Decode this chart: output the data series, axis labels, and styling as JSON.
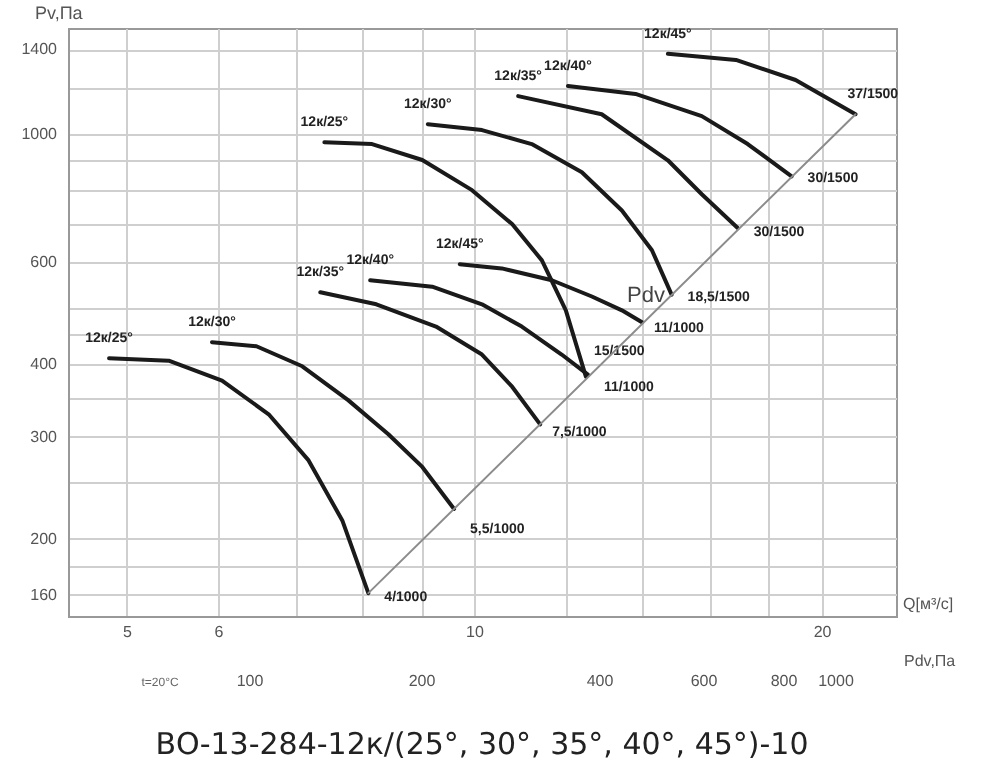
{
  "chart_data": [
    {
      "type": "line",
      "title": "ВО-13-284-12к/(25°, 30°, 35°, 40°, 45°)-10",
      "xlabel": "Q[м³/с]",
      "ylabel": "Pv,Па",
      "log": "xy",
      "grid": true,
      "xlim": [
        4.45,
        23.2
      ],
      "xticks": [
        5,
        6,
        {
          "value": 7,
          "label": null
        },
        {
          "value": 8,
          "label": null
        },
        {
          "value": 9,
          "label": null
        },
        10,
        {
          "value": 12,
          "label": null
        },
        {
          "value": 14,
          "label": null
        },
        {
          "value": 16,
          "label": null
        },
        {
          "value": 18,
          "label": null
        },
        20
      ],
      "ylim": [
        147,
        1525
      ],
      "yticks": [
        160,
        {
          "value": 180,
          "label": null
        },
        200,
        {
          "value": 250,
          "label": null
        },
        300,
        {
          "value": 350,
          "label": null
        },
        400,
        {
          "value": 450,
          "label": null
        },
        {
          "value": 500,
          "label": null
        },
        600,
        {
          "value": 700,
          "label": null
        },
        {
          "value": 800,
          "label": null
        },
        {
          "value": 900,
          "label": null
        },
        {
          "value": 1000,
          "label": "1000"
        },
        {
          "value": 1200,
          "label": null
        },
        {
          "value": 1400,
          "label": "1400"
        }
      ],
      "annotations": [
        "Pdv"
      ],
      "series": [
        {
          "type": "line",
          "name": "12к/25°",
          "color": "#1a1a1a",
          "x": [
            4.83,
            5.44,
            6.05,
            6.64,
            7.19,
            7.69,
            8.1
          ],
          "values": [
            410,
            406,
            375,
            328,
            273,
            215,
            161
          ],
          "value_labels": [
            null,
            null,
            null,
            null,
            null,
            null,
            "4/1000"
          ]
        },
        {
          "type": "line",
          "name": "12к/30°",
          "color": "#1a1a1a",
          "x": [
            5.93,
            6.48,
            7.1,
            7.78,
            8.43,
            9.02,
            9.61
          ],
          "values": [
            437,
            430,
            397,
            347,
            303,
            266,
            225
          ],
          "value_labels": [
            null,
            null,
            null,
            null,
            null,
            null,
            "5,5/1000"
          ]
        },
        {
          "type": "line",
          "name": "12к/35°",
          "color": "#1a1a1a",
          "x": [
            7.36,
            8.23,
            9.27,
            10.16,
            10.79,
            11.41
          ],
          "values": [
            533,
            508,
            465,
            416,
            366,
            315
          ],
          "value_labels": [
            null,
            null,
            null,
            null,
            null,
            "7,5/1000"
          ]
        },
        {
          "type": "line",
          "name": "12к/40°",
          "color": "#1a1a1a",
          "x": [
            8.13,
            9.2,
            10.16,
            11.0,
            11.91,
            12.55
          ],
          "values": [
            559,
            545,
            508,
            465,
            416,
            384
          ],
          "value_labels": [
            null,
            null,
            null,
            null,
            null,
            "11/1000"
          ]
        },
        {
          "type": "line",
          "name": "12к/45°",
          "color": "#1a1a1a",
          "x": [
            9.72,
            10.57,
            11.68,
            12.65,
            13.43,
            13.98
          ],
          "values": [
            596,
            586,
            559,
            524,
            496,
            473
          ],
          "value_labels": [
            null,
            null,
            null,
            null,
            null,
            "11/1000"
          ]
        },
        {
          "type": "line",
          "name": "12к/25°",
          "color": "#1a1a1a",
          "x": [
            7.42,
            8.16,
            9.02,
            9.96,
            10.79,
            11.45,
            12.01,
            12.5
          ],
          "values": [
            968,
            961,
            902,
            800,
            699,
            605,
            496,
            381
          ],
          "value_labels": [
            null,
            null,
            null,
            null,
            null,
            null,
            null,
            "15/1500"
          ]
        },
        {
          "type": "line",
          "name": "12к/30°",
          "color": "#1a1a1a",
          "x": [
            9.12,
            10.16,
            11.22,
            12.4,
            13.43,
            14.26,
            14.83
          ],
          "values": [
            1040,
            1016,
            961,
            859,
            738,
            630,
            528
          ],
          "value_labels": [
            null,
            null,
            null,
            null,
            null,
            null,
            "18,5/1500"
          ]
        },
        {
          "type": "line",
          "name": "12к/35°",
          "color": "#1a1a1a",
          "x": [
            10.92,
            12.9,
            14.72,
            15.75,
            16.92
          ],
          "values": [
            1163,
            1082,
            901,
            787,
            688
          ],
          "value_labels": [
            null,
            null,
            null,
            null,
            "30/1500"
          ]
        },
        {
          "type": "line",
          "name": "12к/40°",
          "color": "#1a1a1a",
          "x": [
            12.06,
            13.8,
            15.75,
            17.26,
            18.84
          ],
          "values": [
            1211,
            1173,
            1074,
            961,
            845
          ],
          "value_labels": [
            null,
            null,
            null,
            null,
            "30/1500"
          ]
        },
        {
          "type": "line",
          "name": "12к/45°",
          "color": "#1a1a1a",
          "x": [
            14.72,
            16.86,
            18.99,
            21.4
          ],
          "values": [
            1376,
            1343,
            1240,
            1082
          ],
          "value_labels": [
            null,
            null,
            null,
            "37/1500"
          ]
        },
        {
          "type": "line",
          "color": "#8c8c8c",
          "x": [
            8.1,
            21.4
          ],
          "values": [
            161,
            1082
          ]
        }
      ]
    },
    {
      "type": "other",
      "xlabel": "Pdv,Па",
      "annotations": [
        "t=20°C",
        "100",
        "200",
        "400",
        "600",
        "800",
        "1000"
      ]
    }
  ]
}
